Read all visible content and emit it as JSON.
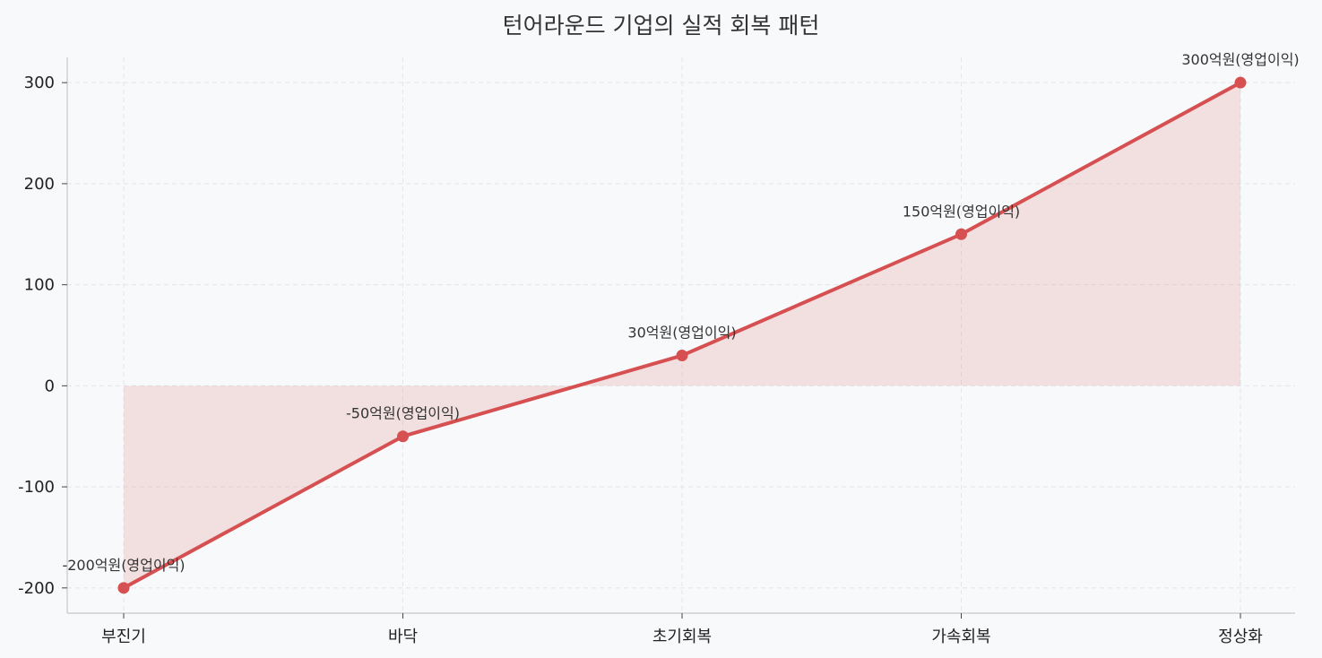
{
  "chart_data": {
    "type": "line",
    "title": "턴어라운드 기업의 실적 회복 패턴",
    "xlabel": "",
    "ylabel": "",
    "categories": [
      "부진기",
      "바닥",
      "초기회복",
      "가속회복",
      "정상화"
    ],
    "series": [
      {
        "values": [
          -200,
          -50,
          30,
          150,
          300
        ]
      }
    ],
    "data_labels": [
      "-200억원(영업이익)",
      "-50억원(영업이익)",
      "30억원(영업이익)",
      "150억원(영업이익)",
      "300억원(영업이익)"
    ],
    "y_ticks": [
      -200,
      -100,
      0,
      100,
      200,
      300
    ],
    "ylim": [
      -225,
      325
    ],
    "grid": true,
    "fill_to_zero": true,
    "colors": {
      "line": "#d65052",
      "fill": "#d65052",
      "background": "#f7f9fb",
      "grid": "#e3e6ea",
      "axis": "#c8c8c8"
    }
  }
}
